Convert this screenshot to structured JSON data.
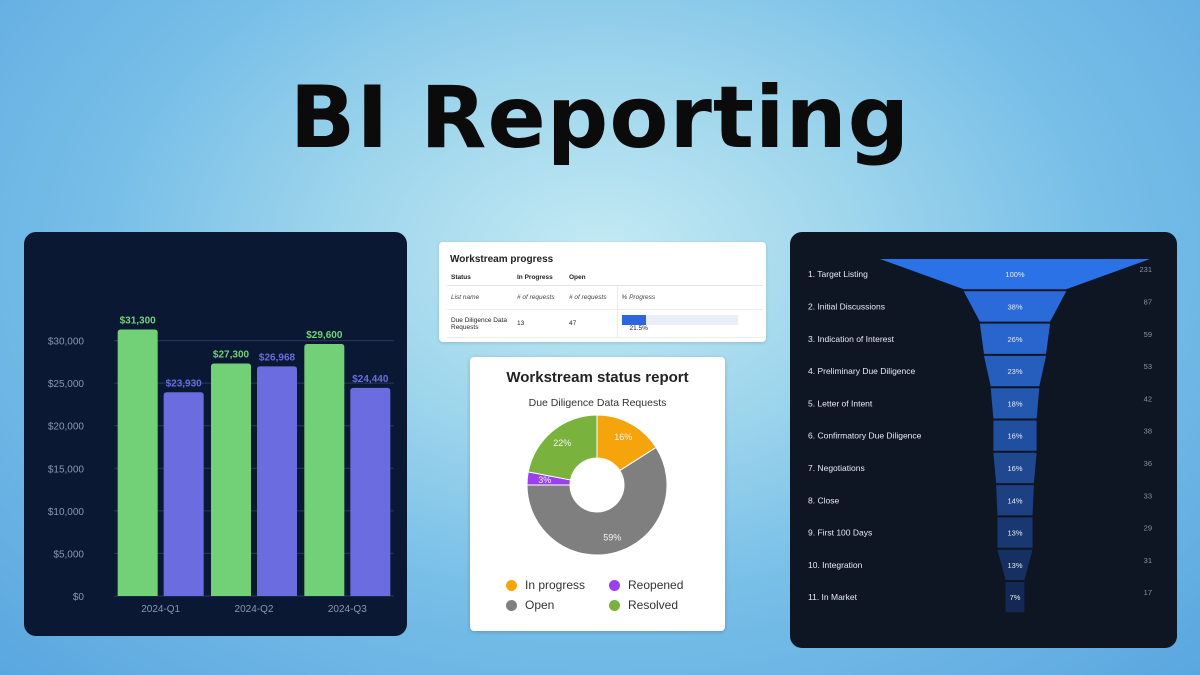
{
  "page": {
    "title": "BI Reporting"
  },
  "chart_data": [
    {
      "type": "bar",
      "categories": [
        "2024-Q1",
        "2024-Q2",
        "2024-Q3"
      ],
      "series": [
        {
          "values": [
            31300,
            27300,
            29600
          ],
          "labels": [
            "$31,300",
            "$27,300",
            "$29,600"
          ],
          "color": "#72d077"
        },
        {
          "values": [
            23930,
            26968,
            24440
          ],
          "labels": [
            "$23,930",
            "$26,968",
            "$24,440"
          ],
          "color": "#6b6ce0"
        }
      ],
      "yticks": [
        "$0",
        "$5,000",
        "$10,000",
        "$15,000",
        "$20,000",
        "$25,000",
        "$30,000"
      ],
      "ylim": [
        0,
        35000
      ],
      "grid": true
    },
    {
      "type": "table",
      "title": "Workstream progress",
      "columns": [
        "Status",
        "In Progress",
        "Open",
        ""
      ],
      "subheader": [
        "List name",
        "# of requests",
        "# of requests",
        "% Progress"
      ],
      "rows": [
        {
          "name": "Due Diligence Data Requests",
          "in_progress": "13",
          "open": "47",
          "progress": 21.5,
          "progress_label": "21.5%"
        }
      ]
    },
    {
      "type": "pie",
      "title": "Workstream status report",
      "subtitle": "Due Diligence Data Requests",
      "slices": [
        {
          "name": "In progress",
          "value": 16,
          "label": "16%",
          "color": "#f5a50b"
        },
        {
          "name": "Open",
          "value": 59,
          "label": "59%",
          "color": "#7f7f7f"
        },
        {
          "name": "Reopened",
          "value": 3,
          "label": "3%",
          "color": "#9b3ff0"
        },
        {
          "name": "Resolved",
          "value": 22,
          "label": "22%",
          "color": "#79b23c"
        }
      ]
    },
    {
      "type": "bar",
      "subtype": "funnel",
      "stages": [
        {
          "label": "1. Target Listing",
          "value": 231,
          "percent": 100,
          "percent_label": "100%"
        },
        {
          "label": "2. Initial Discussions",
          "value": 87,
          "percent": 38,
          "percent_label": "38%"
        },
        {
          "label": "3. Indication of Interest",
          "value": 59,
          "percent": 26,
          "percent_label": "26%"
        },
        {
          "label": "4. Preliminary Due Diligence",
          "value": 53,
          "percent": 23,
          "percent_label": "23%"
        },
        {
          "label": "5. Letter of Intent",
          "value": 42,
          "percent": 18,
          "percent_label": "18%"
        },
        {
          "label": "6. Confirmatory Due Diligence",
          "value": 38,
          "percent": 16,
          "percent_label": "16%"
        },
        {
          "label": "7. Negotiations",
          "value": 36,
          "percent": 16,
          "percent_label": "16%"
        },
        {
          "label": "8. Close",
          "value": 33,
          "percent": 14,
          "percent_label": "14%"
        },
        {
          "label": "9. First 100 Days",
          "value": 29,
          "percent": 13,
          "percent_label": "13%"
        },
        {
          "label": "10. Integration",
          "value": 31,
          "percent": 13,
          "percent_label": "13%"
        },
        {
          "label": "11. In Market",
          "value": 17,
          "percent": 7,
          "percent_label": "7%"
        }
      ]
    }
  ]
}
